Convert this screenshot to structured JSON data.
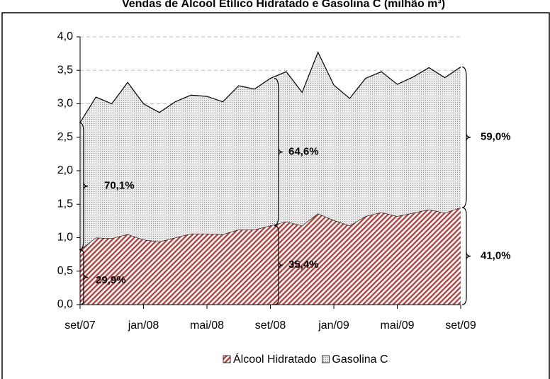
{
  "chart_data": {
    "type": "stacked_area",
    "title": "Vendas de Álcool Etílico Hidratado e Gasolina C (milhão m³)",
    "categories": [
      "set/07",
      null,
      null,
      null,
      "jan/08",
      null,
      null,
      null,
      "mai/08",
      null,
      null,
      null,
      "set/08",
      null,
      null,
      null,
      "jan/09",
      null,
      null,
      null,
      "mai/09",
      null,
      null,
      null,
      "set/09"
    ],
    "series": [
      {
        "name": "Álcool Hidratado",
        "color": "#c0504d",
        "values": [
          0.82,
          1.0,
          0.99,
          1.05,
          0.97,
          0.94,
          1.0,
          1.06,
          1.06,
          1.05,
          1.12,
          1.12,
          1.18,
          1.24,
          1.18,
          1.36,
          1.26,
          1.18,
          1.32,
          1.38,
          1.32,
          1.37,
          1.42,
          1.37,
          1.45
        ]
      },
      {
        "name": "Gasolina C",
        "color": "#a6a6a6",
        "values": [
          1.9,
          2.1,
          2.01,
          2.27,
          2.03,
          1.93,
          2.03,
          2.07,
          2.05,
          1.98,
          2.15,
          2.1,
          2.2,
          2.24,
          1.99,
          2.41,
          2.02,
          1.9,
          2.06,
          2.1,
          1.97,
          2.03,
          2.12,
          2.02,
          2.1
        ]
      }
    ],
    "ylim": [
      0,
      4
    ],
    "yticks": [
      {
        "value": 0,
        "label": "0,0"
      },
      {
        "value": 0.5,
        "label": "0,5"
      },
      {
        "value": 1,
        "label": "1,0"
      },
      {
        "value": 1.5,
        "label": "1,5"
      },
      {
        "value": 2,
        "label": "2,0"
      },
      {
        "value": 2.5,
        "label": "2,5"
      },
      {
        "value": 3,
        "label": "3,0"
      },
      {
        "value": 3.5,
        "label": "3,5"
      },
      {
        "value": 4,
        "label": "4,0"
      }
    ],
    "grid": true,
    "annotations": [
      "29,9%",
      "70,1%",
      "35,4%",
      "64,6%",
      "41,0%",
      "59,0%"
    ]
  }
}
